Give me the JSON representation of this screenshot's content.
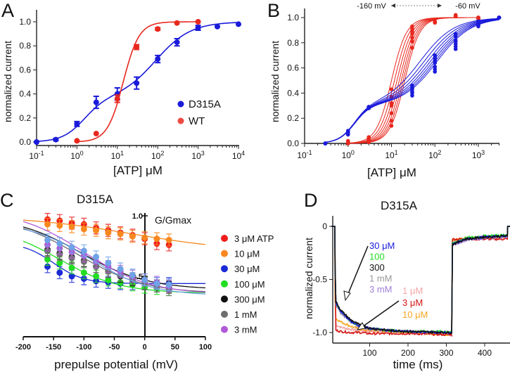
{
  "panels": {
    "a": "A",
    "b": "B",
    "c": "C",
    "d": "D"
  },
  "chart_data": [
    {
      "id": "A",
      "type": "scatter",
      "xscale": "log",
      "xlabel": "[ATP] μM",
      "ylabel": "normalized current",
      "xlim": [
        0.1,
        10000
      ],
      "ylim": [
        0,
        1.0
      ],
      "xticks": [
        {
          "base": "10",
          "exp": "-1"
        },
        {
          "base": "10",
          "exp": "0"
        },
        {
          "base": "10",
          "exp": "1"
        },
        {
          "base": "10",
          "exp": "2"
        },
        {
          "base": "10",
          "exp": "3"
        },
        {
          "base": "10",
          "exp": "4"
        }
      ],
      "yticks": [
        "0.0",
        "0.2",
        "0.4",
        "0.6",
        "0.8",
        "1.0"
      ],
      "legend_position": "right",
      "series": [
        {
          "name": "D315A",
          "color": "#1a1adb",
          "x": [
            0.1,
            0.3,
            1,
            3,
            10,
            30,
            100,
            300,
            1000,
            3000,
            10000
          ],
          "y": [
            0.0,
            0.02,
            0.15,
            0.33,
            0.4,
            0.49,
            0.69,
            0.83,
            0.95,
            0.96,
            0.98
          ],
          "err": [
            0,
            0.01,
            0.02,
            0.05,
            0.05,
            0.05,
            0.03,
            0.03,
            0.02,
            0,
            0
          ]
        },
        {
          "name": "WT",
          "color": "#e8281e",
          "x": [
            1,
            3,
            10,
            30,
            100,
            300,
            1000
          ],
          "y": [
            0.01,
            0.07,
            0.36,
            0.79,
            0.94,
            0.99,
            1.0
          ],
          "err": [
            0,
            0,
            0.03,
            0.02,
            0.01,
            0,
            0
          ]
        }
      ]
    },
    {
      "id": "B",
      "type": "scatter",
      "xscale": "log",
      "xlabel": "[ATP] μM",
      "ylabel": "normalized current",
      "xlim": [
        0.1,
        3000
      ],
      "ylim": [
        0,
        1.0
      ],
      "xticks": [
        {
          "base": "10",
          "exp": "-1"
        },
        {
          "base": "10",
          "exp": "0"
        },
        {
          "base": "10",
          "exp": "1"
        },
        {
          "base": "10",
          "exp": "2"
        },
        {
          "base": "10",
          "exp": "3"
        }
      ],
      "yticks": [
        "0.0",
        "0.2",
        "0.4",
        "0.6",
        "0.8",
        "1.0"
      ],
      "annotation": {
        "left": "-160 mV",
        "right": "-60 mV"
      },
      "groups": [
        {
          "color": "#e8281e",
          "x": [
            1,
            3,
            10,
            30,
            100,
            300,
            1000
          ],
          "series": [
            [
              0.02,
              0.05,
              0.43,
              0.93,
              0.97,
              1.01,
              1.0
            ],
            [
              0.015,
              0.045,
              0.37,
              0.91,
              0.97,
              1.01,
              1.0
            ],
            [
              0.01,
              0.035,
              0.32,
              0.89,
              0.96,
              1.02,
              1.0
            ],
            [
              0.01,
              0.03,
              0.3,
              0.87,
              0.96,
              1.01,
              0.99
            ],
            [
              0.01,
              0.02,
              0.24,
              0.84,
              0.97,
              1.01,
              0.99
            ],
            [
              0.0,
              0.015,
              0.18,
              0.81,
              0.96,
              1.02,
              0.99
            ],
            [
              0.0,
              0.01,
              0.14,
              0.76,
              0.96,
              1.01,
              1.0
            ]
          ]
        },
        {
          "color": "#1a1adb",
          "x": [
            0.3,
            1,
            3,
            30,
            100,
            300,
            1000,
            3000
          ],
          "series": [
            [
              0.0,
              0.1,
              0.29,
              0.46,
              0.7,
              0.87,
              0.97,
              1.0
            ],
            [
              0.0,
              0.095,
              0.29,
              0.45,
              0.68,
              0.85,
              0.96,
              1.0
            ],
            [
              0.0,
              0.09,
              0.29,
              0.44,
              0.66,
              0.82,
              0.96,
              1.0
            ],
            [
              0.0,
              0.085,
              0.285,
              0.43,
              0.64,
              0.81,
              0.95,
              1.0
            ],
            [
              0.0,
              0.08,
              0.28,
              0.41,
              0.61,
              0.79,
              0.95,
              1.0
            ],
            [
              0.0,
              0.075,
              0.28,
              0.4,
              0.59,
              0.77,
              0.94,
              1.0
            ],
            [
              0.0,
              0.07,
              0.28,
              0.38,
              0.57,
              0.75,
              0.93,
              1.0
            ]
          ]
        }
      ]
    },
    {
      "id": "C",
      "type": "scatter",
      "title": "D315A",
      "xlabel": "prepulse potential (mV)",
      "ylabel": "G/Gmax",
      "xlim": [
        -200,
        100
      ],
      "ylim": [
        0,
        1.0
      ],
      "xticks": [
        "-200",
        "-150",
        "-100",
        "-50",
        "0",
        "50",
        "100"
      ],
      "yticks": [
        "0.5",
        "1.0"
      ],
      "legend_position": "right",
      "x": [
        -160,
        -140,
        -120,
        -100,
        -80,
        -60,
        -40,
        -20,
        0,
        20,
        40
      ],
      "series": [
        {
          "name": "3 μM ATP",
          "color": "#ee1c1c",
          "y": [
            0.97,
            0.96,
            0.94,
            0.93,
            0.9,
            0.88,
            0.86,
            0.84,
            0.81,
            0.77,
            0.76
          ]
        },
        {
          "name": "10 μM",
          "color": "#f7881f",
          "y": [
            0.93,
            0.92,
            0.91,
            0.89,
            0.88,
            0.86,
            0.85,
            0.83,
            0.82,
            0.81,
            0.8
          ]
        },
        {
          "name": "30 μM",
          "color": "#1a2ad6",
          "y": [
            0.58,
            0.53,
            0.5,
            0.48,
            0.46,
            0.45,
            0.44,
            0.44,
            0.44,
            0.44,
            0.44
          ]
        },
        {
          "name": "100 μM",
          "color": "#22dd22",
          "y": [
            0.64,
            0.61,
            0.57,
            0.53,
            0.5,
            0.47,
            0.45,
            0.43,
            0.41,
            0.4,
            0.39
          ]
        },
        {
          "name": "300 μM",
          "color": "#111111",
          "y": [
            0.72,
            0.69,
            0.66,
            0.63,
            0.58,
            0.54,
            0.5,
            0.47,
            0.44,
            0.42,
            0.41
          ]
        },
        {
          "name": "1 mM",
          "color": "#6e6e6e",
          "y": [
            0.71,
            0.68,
            0.65,
            0.62,
            0.58,
            0.54,
            0.51,
            0.48,
            0.44,
            0.42,
            0.39
          ]
        },
        {
          "name": "3 mM",
          "color": "#b05ad8",
          "y": [
            0.76,
            0.73,
            0.7,
            0.67,
            0.62,
            0.58,
            0.54,
            0.5,
            0.47,
            0.45,
            0.42
          ]
        },
        {
          "color": "#6fa2e6",
          "y": [
            0.8,
            0.77,
            0.74,
            0.71,
            0.66,
            0.61,
            0.56,
            0.51,
            0.47,
            0.44,
            0.43
          ]
        }
      ]
    },
    {
      "id": "D",
      "type": "line",
      "title": "D315A",
      "xlabel": "time (ms)",
      "ylabel": "normalized current",
      "xlim": [
        0,
        466
      ],
      "ylim": [
        -1.1,
        0.1
      ],
      "xticks": [
        "100",
        "200",
        "300",
        "400"
      ],
      "yticks": [
        "0",
        "-0.5",
        "-1.0"
      ],
      "t": [
        0,
        9,
        10,
        12,
        25,
        50,
        75,
        100,
        150,
        200,
        300,
        314,
        316,
        350,
        400,
        455,
        459,
        460,
        466
      ],
      "label_groups": [
        [
          "30 μM",
          "100",
          "300",
          "1 mM",
          "3 mM"
        ],
        [
          "1 μM",
          "3 μM",
          "10 μM"
        ]
      ],
      "series": [
        {
          "name": "1 μM",
          "color": "#f4a6a6",
          "y": [
            0,
            0,
            -0.5,
            -0.93,
            -0.95,
            -0.97,
            -0.98,
            -0.99,
            -1.0,
            -1.0,
            -1.01,
            -1.01,
            -0.14,
            -0.12,
            -0.11,
            -0.11,
            -0.11,
            0,
            0
          ]
        },
        {
          "name": "10 μM",
          "color": "#f5a623",
          "y": [
            0,
            0,
            -0.7,
            -0.87,
            -0.9,
            -0.94,
            -0.97,
            -0.98,
            -0.99,
            -1.0,
            -1.02,
            -1.02,
            -0.13,
            -0.11,
            -0.1,
            -0.1,
            -0.1,
            0,
            0
          ]
        },
        {
          "name": "3 μM",
          "color": "#d41414",
          "y": [
            0,
            0,
            -0.5,
            -0.98,
            -0.99,
            -1.0,
            -1.0,
            -1.01,
            -1.01,
            -1.01,
            -1.02,
            -1.02,
            -0.12,
            -0.12,
            -0.12,
            -0.12,
            -0.12,
            0,
            0
          ]
        },
        {
          "name": "3 mM",
          "color": "#a080d8",
          "y": [
            0,
            0,
            -0.4,
            -0.74,
            -0.82,
            -0.9,
            -0.95,
            -0.97,
            -0.98,
            -0.99,
            -1.0,
            -1.0,
            -0.18,
            -0.13,
            -0.11,
            -0.1,
            -0.1,
            0,
            0
          ]
        },
        {
          "name": "1 mM",
          "color": "#999999",
          "y": [
            0,
            0,
            -0.4,
            -0.73,
            -0.81,
            -0.89,
            -0.94,
            -0.96,
            -0.98,
            -0.99,
            -1.0,
            -1.0,
            -0.17,
            -0.12,
            -0.1,
            -0.09,
            -0.09,
            0,
            0
          ]
        },
        {
          "name": "100",
          "color": "#22dd22",
          "y": [
            0,
            0,
            -0.4,
            -0.72,
            -0.8,
            -0.89,
            -0.94,
            -0.96,
            -0.98,
            -0.99,
            -0.99,
            -0.99,
            -0.16,
            -0.11,
            -0.09,
            -0.08,
            -0.08,
            0,
            0
          ]
        },
        {
          "name": "30 μM",
          "color": "#1a1adb",
          "y": [
            0,
            0,
            -0.4,
            -0.72,
            -0.8,
            -0.89,
            -0.94,
            -0.96,
            -0.98,
            -0.99,
            -1.0,
            -1.0,
            -0.17,
            -0.12,
            -0.1,
            -0.09,
            -0.09,
            0,
            0
          ]
        },
        {
          "name": "300",
          "color": "#111111",
          "y": [
            0,
            0,
            -0.4,
            -0.71,
            -0.79,
            -0.88,
            -0.93,
            -0.96,
            -0.98,
            -0.99,
            -1.0,
            -1.0,
            -0.17,
            -0.12,
            -0.1,
            -0.09,
            -0.09,
            0,
            0
          ]
        }
      ]
    }
  ]
}
